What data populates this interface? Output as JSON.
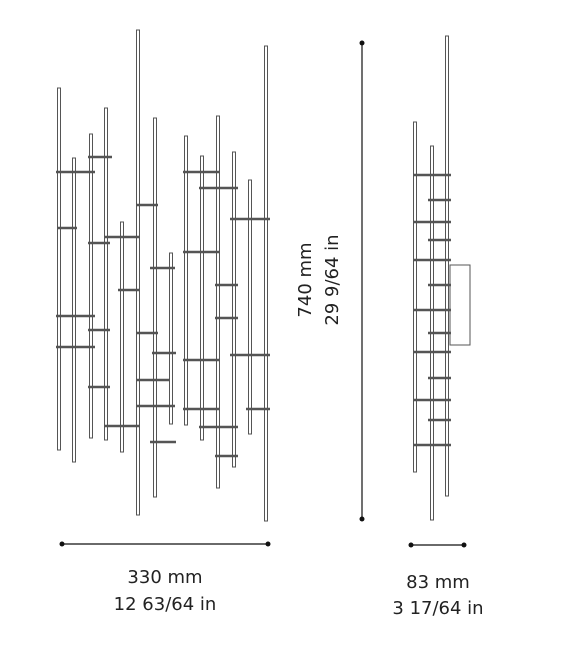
{
  "front_view": {
    "width_mm": "330 mm",
    "width_in": "12 63/64 in"
  },
  "height": {
    "mm": "740 mm",
    "in": "29 9/64 in"
  },
  "side_view": {
    "depth_mm": "83 mm",
    "depth_in": "3 17/64 in"
  }
}
